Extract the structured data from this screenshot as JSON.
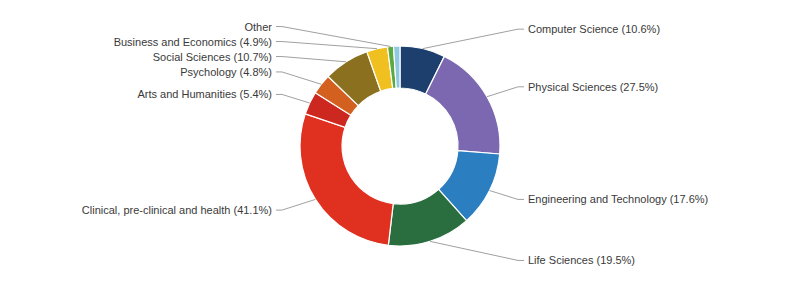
{
  "chart_data": {
    "type": "pie",
    "categories": [
      "Computer Science (10.6%)",
      "Physical Sciences (27.5%)",
      "Engineering and Technology (17.6%)",
      "Life Sciences (19.5%)",
      "Clinical, pre-clinical and health (41.1%)",
      "Arts and Humanities (5.4%)",
      "Psychology (4.8%)",
      "Social Sciences (10.7%)",
      "Business and Economics (4.9%)",
      "Other",
      null
    ],
    "values": [
      10.6,
      27.5,
      17.6,
      19.5,
      41.1,
      5.4,
      4.8,
      10.7,
      4.9,
      1.4,
      1.5
    ],
    "colors": [
      "#1c3f6e",
      "#7b68b0",
      "#2b7fc1",
      "#2a6e3f",
      "#e03020",
      "#cc2820",
      "#d46020",
      "#8b7020",
      "#f0c020",
      "#5aaa40",
      "#90c8e0"
    ]
  }
}
